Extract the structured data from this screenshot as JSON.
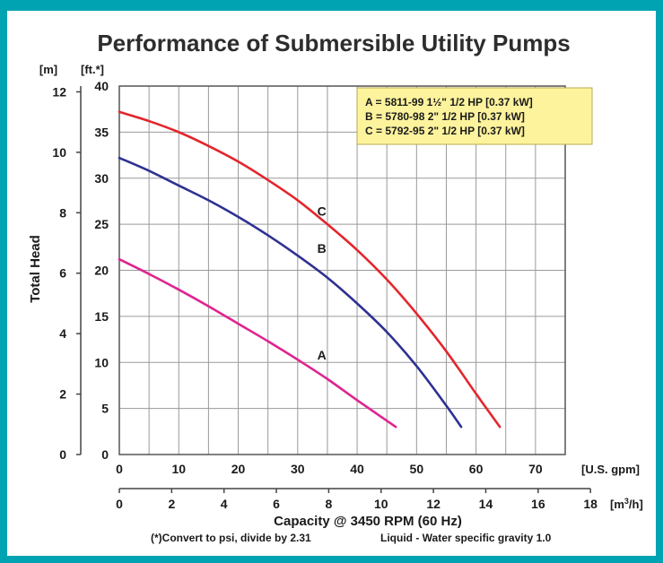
{
  "chart_data": {
    "type": "line",
    "title": "Performance of Submersible Utility Pumps",
    "ylabel": "Total Head",
    "xlabel": "Capacity @ 3450 RPM (60 Hz)",
    "footnote": "(*)Convert to psi, divide by 2.31",
    "footnote2": "Liquid - Water specific gravity 1.0",
    "y_left_unit": "[m]",
    "y_right_unit": "[ft.*]",
    "x_unit_gpm": "[U.S. gpm]",
    "x_unit_m3h_base": "[m",
    "x_unit_m3h_sup": "3",
    "x_unit_m3h_end": "/h]",
    "y_ft_ticks": [
      "0",
      "5",
      "10",
      "15",
      "20",
      "25",
      "30",
      "35",
      "40"
    ],
    "y_m_ticks": [
      "0",
      "2",
      "4",
      "6",
      "8",
      "10",
      "12"
    ],
    "x_gpm_ticks": [
      "0",
      "10",
      "20",
      "30",
      "40",
      "50",
      "60",
      "70"
    ],
    "x_m3h_ticks": [
      "0",
      "2",
      "4",
      "6",
      "8",
      "10",
      "12",
      "14",
      "16",
      "18"
    ],
    "xlim_gpm": [
      0,
      75
    ],
    "ylim_ft": [
      0,
      40
    ],
    "grid": true,
    "legend": {
      "placement": "top-right",
      "entries": [
        "A = 5811-99 1½\" 1/2 HP [0.37 kW]",
        "B = 5780-98 2\" 1/2 HP [0.37 kW]",
        "C = 5792-95 2\" 1/2 HP [0.37 kW]"
      ]
    },
    "series": [
      {
        "name": "A",
        "color": "#e0238f",
        "x": [
          0,
          5,
          10,
          15,
          20,
          25,
          30,
          35,
          40,
          46.5
        ],
        "y": [
          21.2,
          19.6,
          17.9,
          16.1,
          14.2,
          12.3,
          10.3,
          8.2,
          5.9,
          3.0
        ]
      },
      {
        "name": "B",
        "color": "#2e3192",
        "x": [
          0,
          5,
          10,
          15,
          20,
          25,
          30,
          35,
          40,
          45,
          50,
          55,
          57.5
        ],
        "y": [
          32.2,
          30.8,
          29.2,
          27.6,
          25.8,
          23.8,
          21.6,
          19.2,
          16.4,
          13.3,
          9.6,
          5.3,
          3.0
        ]
      },
      {
        "name": "C",
        "color": "#e3262c",
        "x": [
          0,
          5,
          10,
          15,
          20,
          25,
          30,
          35,
          40,
          45,
          50,
          55,
          60,
          64
        ],
        "y": [
          37.2,
          36.2,
          35.0,
          33.5,
          31.8,
          29.8,
          27.6,
          25.0,
          22.2,
          19.0,
          15.3,
          11.2,
          6.6,
          3.0
        ]
      }
    ]
  }
}
